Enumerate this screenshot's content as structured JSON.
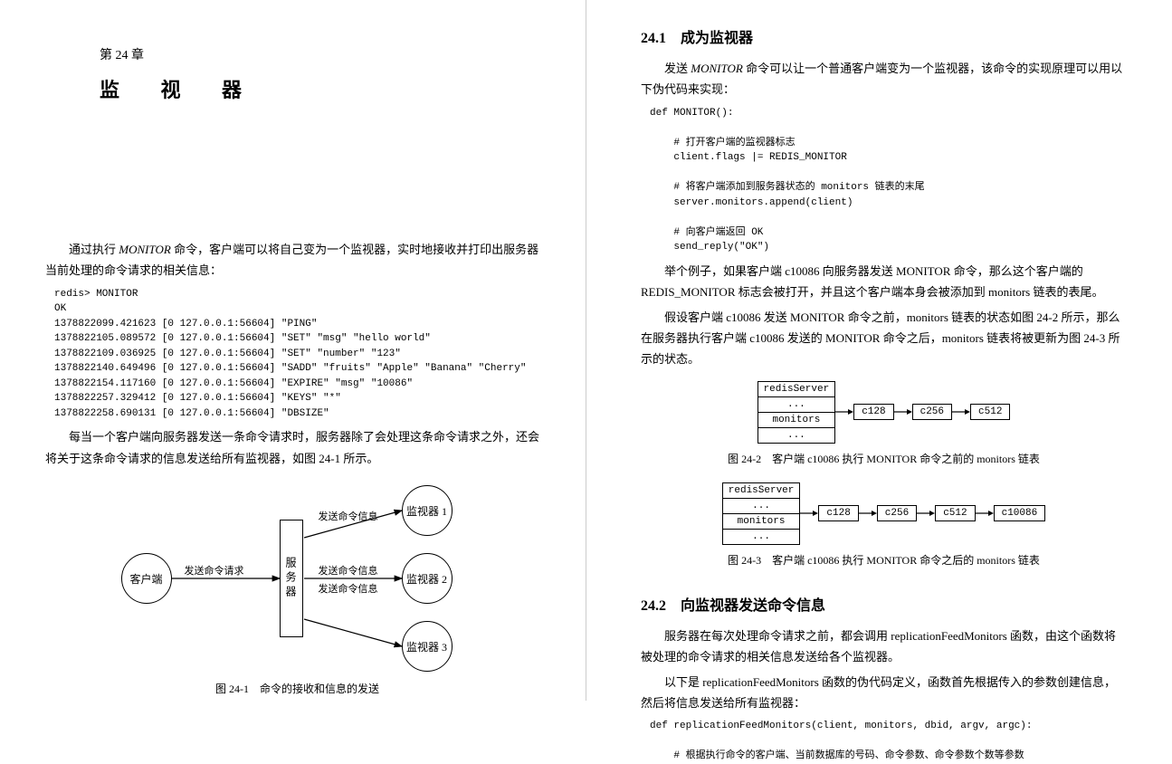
{
  "left": {
    "chapter_label": "第 24 章",
    "chapter_title": "监 视 器",
    "para1_pre": "通过执行 ",
    "para1_cmd": "MONITOR",
    "para1_post": " 命令，客户端可以将自己变为一个监视器，实时地接收并打印出服务器当前处理的命令请求的相关信息：",
    "code1": "redis> MONITOR\nOK\n1378822099.421623 [0 127.0.0.1:56604] \"PING\"\n1378822105.089572 [0 127.0.0.1:56604] \"SET\" \"msg\" \"hello world\"\n1378822109.036925 [0 127.0.0.1:56604] \"SET\" \"number\" \"123\"\n1378822140.649496 [0 127.0.0.1:56604] \"SADD\" \"fruits\" \"Apple\" \"Banana\" \"Cherry\"\n1378822154.117160 [0 127.0.0.1:56604] \"EXPIRE\" \"msg\" \"10086\"\n1378822257.329412 [0 127.0.0.1:56604] \"KEYS\" \"*\"\n1378822258.690131 [0 127.0.0.1:56604] \"DBSIZE\"",
    "para2": "每当一个客户端向服务器发送一条命令请求时，服务器除了会处理这条命令请求之外，还会将关于这条命令请求的信息发送给所有监视器，如图 24-1 所示。",
    "diagram1": {
      "client": "客户端",
      "server": "服务器",
      "monitor1": "监视器 1",
      "monitor2": "监视器 2",
      "monitor3": "监视器 3",
      "req_label": "发送命令请求",
      "info_label": "发送命令信息"
    },
    "fig1_caption": "图 24-1　命令的接收和信息的发送"
  },
  "right": {
    "sec1_title": "24.1　成为监视器",
    "sec1_para1_a": "发送 ",
    "sec1_para1_cmd": "MONITOR",
    "sec1_para1_b": " 命令可以让一个普通客户端变为一个监视器，该命令的实现原理可以用以下伪代码来实现：",
    "code2": "def MONITOR():\n\n    # 打开客户端的监视器标志\n    client.flags |= REDIS_MONITOR\n\n    # 将客户端添加到服务器状态的 monitors 链表的末尾\n    server.monitors.append(client)\n\n    # 向客户端返回 OK\n    send_reply(\"OK\")",
    "sec1_para2": "举个例子，如果客户端 c10086 向服务器发送 MONITOR 命令，那么这个客户端的 REDIS_MONITOR 标志会被打开，并且这个客户端本身会被添加到 monitors 链表的表尾。",
    "sec1_para3": "假设客户端 c10086 发送 MONITOR 命令之前，monitors 链表的状态如图 24-2 所示，那么在服务器执行客户端 c10086 发送的 MONITOR 命令之后，monitors 链表将被更新为图 24-3 所示的状态。",
    "ll": {
      "header": "redisServer",
      "dots": "...",
      "monitors": "monitors",
      "nodes_before": [
        "c128",
        "c256",
        "c512"
      ],
      "nodes_after": [
        "c128",
        "c256",
        "c512",
        "c10086"
      ]
    },
    "fig2_caption": "图 24-2　客户端 c10086 执行 MONITOR 命令之前的 monitors 链表",
    "fig3_caption": "图 24-3　客户端 c10086 执行 MONITOR 命令之后的 monitors 链表",
    "sec2_title": "24.2　向监视器发送命令信息",
    "sec2_para1": "服务器在每次处理命令请求之前，都会调用 replicationFeedMonitors 函数，由这个函数将被处理的命令请求的相关信息发送给各个监视器。",
    "sec2_para2": "以下是 replicationFeedMonitors 函数的伪代码定义，函数首先根据传入的参数创建信息，然后将信息发送给所有监视器：",
    "code3": "def replicationFeedMonitors(client, monitors, dbid, argv, argc):\n\n    # 根据执行命令的客户端、当前数据库的号码、命令参数、命令参数个数等参数"
  }
}
